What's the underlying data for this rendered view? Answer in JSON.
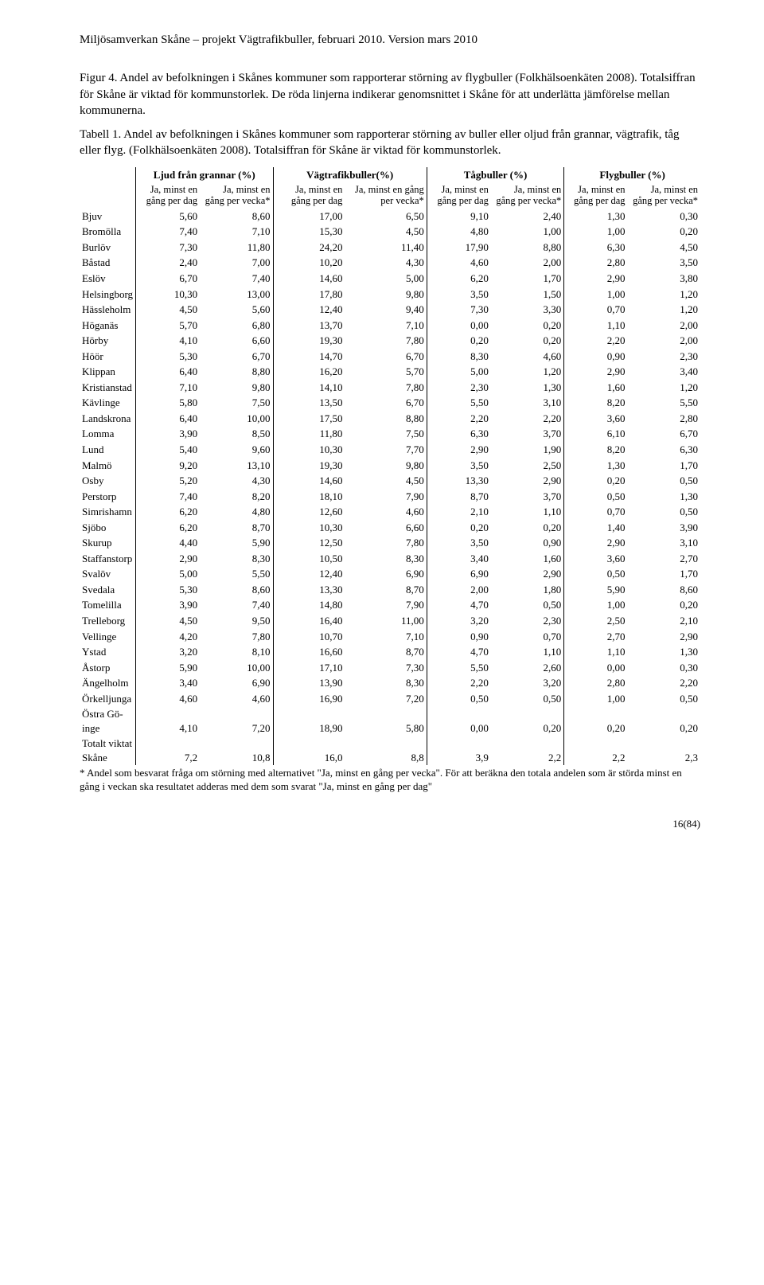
{
  "header": "Miljösamverkan Skåne – projekt Vägtrafikbuller, februari 2010. Version mars 2010",
  "caption1": "Figur 4. Andel av befolkningen i Skånes kommuner som rapporterar störning av flygbuller (Folkhälsoenkäten 2008). Totalsiffran för Skåne är viktad för kommunstorlek. De röda linjerna indikerar genomsnittet i Skåne för att underlätta jämförelse mellan kommunerna.",
  "caption2": "Tabell 1. Andel av befolkningen i Skånes kommuner som rapporterar störning av buller eller oljud från grannar, vägtrafik, tåg eller flyg. (Folkhälsoenkäten 2008). Totalsiffran för Skåne är viktad för kommunstorlek.",
  "table": {
    "groupHeaders": [
      "Ljud från grannar (%)",
      "Vägtrafikbuller(%)",
      "Tågbuller (%)",
      "Flygbuller (%)"
    ],
    "subHeaders": [
      "Ja, minst en gång per dag",
      "Ja, minst en gång per vecka*",
      "Ja, minst en gång per dag",
      "Ja, minst en gång per vecka*",
      "Ja, minst en gång per dag",
      "Ja, minst en gång per vecka*",
      "Ja, minst en gång per dag",
      "Ja, minst en gång per vecka*"
    ],
    "rows": [
      {
        "label": "Bjuv",
        "v": [
          "5,60",
          "8,60",
          "17,00",
          "6,50",
          "9,10",
          "2,40",
          "1,30",
          "0,30"
        ]
      },
      {
        "label": "Bromölla",
        "v": [
          "7,40",
          "7,10",
          "15,30",
          "4,50",
          "4,80",
          "1,00",
          "1,00",
          "0,20"
        ]
      },
      {
        "label": "Burlöv",
        "v": [
          "7,30",
          "11,80",
          "24,20",
          "11,40",
          "17,90",
          "8,80",
          "6,30",
          "4,50"
        ]
      },
      {
        "label": "Båstad",
        "v": [
          "2,40",
          "7,00",
          "10,20",
          "4,30",
          "4,60",
          "2,00",
          "2,80",
          "3,50"
        ]
      },
      {
        "label": "Eslöv",
        "v": [
          "6,70",
          "7,40",
          "14,60",
          "5,00",
          "6,20",
          "1,70",
          "2,90",
          "3,80"
        ]
      },
      {
        "label": "Helsingborg",
        "v": [
          "10,30",
          "13,00",
          "17,80",
          "9,80",
          "3,50",
          "1,50",
          "1,00",
          "1,20"
        ]
      },
      {
        "label": "Hässleholm",
        "v": [
          "4,50",
          "5,60",
          "12,40",
          "9,40",
          "7,30",
          "3,30",
          "0,70",
          "1,20"
        ]
      },
      {
        "label": "Höganäs",
        "v": [
          "5,70",
          "6,80",
          "13,70",
          "7,10",
          "0,00",
          "0,20",
          "1,10",
          "2,00"
        ]
      },
      {
        "label": "Hörby",
        "v": [
          "4,10",
          "6,60",
          "19,30",
          "7,80",
          "0,20",
          "0,20",
          "2,20",
          "2,00"
        ]
      },
      {
        "label": "Höör",
        "v": [
          "5,30",
          "6,70",
          "14,70",
          "6,70",
          "8,30",
          "4,60",
          "0,90",
          "2,30"
        ]
      },
      {
        "label": "Klippan",
        "v": [
          "6,40",
          "8,80",
          "16,20",
          "5,70",
          "5,00",
          "1,20",
          "2,90",
          "3,40"
        ]
      },
      {
        "label": "Kristianstad",
        "v": [
          "7,10",
          "9,80",
          "14,10",
          "7,80",
          "2,30",
          "1,30",
          "1,60",
          "1,20"
        ]
      },
      {
        "label": "Kävlinge",
        "v": [
          "5,80",
          "7,50",
          "13,50",
          "6,70",
          "5,50",
          "3,10",
          "8,20",
          "5,50"
        ]
      },
      {
        "label": "Landskrona",
        "v": [
          "6,40",
          "10,00",
          "17,50",
          "8,80",
          "2,20",
          "2,20",
          "3,60",
          "2,80"
        ]
      },
      {
        "label": "Lomma",
        "v": [
          "3,90",
          "8,50",
          "11,80",
          "7,50",
          "6,30",
          "3,70",
          "6,10",
          "6,70"
        ]
      },
      {
        "label": "Lund",
        "v": [
          "5,40",
          "9,60",
          "10,30",
          "7,70",
          "2,90",
          "1,90",
          "8,20",
          "6,30"
        ]
      },
      {
        "label": "Malmö",
        "v": [
          "9,20",
          "13,10",
          "19,30",
          "9,80",
          "3,50",
          "2,50",
          "1,30",
          "1,70"
        ]
      },
      {
        "label": "Osby",
        "v": [
          "5,20",
          "4,30",
          "14,60",
          "4,50",
          "13,30",
          "2,90",
          "0,20",
          "0,50"
        ]
      },
      {
        "label": "Perstorp",
        "v": [
          "7,40",
          "8,20",
          "18,10",
          "7,90",
          "8,70",
          "3,70",
          "0,50",
          "1,30"
        ]
      },
      {
        "label": "Simrishamn",
        "v": [
          "6,20",
          "4,80",
          "12,60",
          "4,60",
          "2,10",
          "1,10",
          "0,70",
          "0,50"
        ]
      },
      {
        "label": "Sjöbo",
        "v": [
          "6,20",
          "8,70",
          "10,30",
          "6,60",
          "0,20",
          "0,20",
          "1,40",
          "3,90"
        ]
      },
      {
        "label": "Skurup",
        "v": [
          "4,40",
          "5,90",
          "12,50",
          "7,80",
          "3,50",
          "0,90",
          "2,90",
          "3,10"
        ]
      },
      {
        "label": "Staffanstorp",
        "v": [
          "2,90",
          "8,30",
          "10,50",
          "8,30",
          "3,40",
          "1,60",
          "3,60",
          "2,70"
        ]
      },
      {
        "label": "Svalöv",
        "v": [
          "5,00",
          "5,50",
          "12,40",
          "6,90",
          "6,90",
          "2,90",
          "0,50",
          "1,70"
        ]
      },
      {
        "label": "Svedala",
        "v": [
          "5,30",
          "8,60",
          "13,30",
          "8,70",
          "2,00",
          "1,80",
          "5,90",
          "8,60"
        ]
      },
      {
        "label": "Tomelilla",
        "v": [
          "3,90",
          "7,40",
          "14,80",
          "7,90",
          "4,70",
          "0,50",
          "1,00",
          "0,20"
        ]
      },
      {
        "label": "Trelleborg",
        "v": [
          "4,50",
          "9,50",
          "16,40",
          "11,00",
          "3,20",
          "2,30",
          "2,50",
          "2,10"
        ]
      },
      {
        "label": "Vellinge",
        "v": [
          "4,20",
          "7,80",
          "10,70",
          "7,10",
          "0,90",
          "0,70",
          "2,70",
          "2,90"
        ]
      },
      {
        "label": "Ystad",
        "v": [
          "3,20",
          "8,10",
          "16,60",
          "8,70",
          "4,70",
          "1,10",
          "1,10",
          "1,30"
        ]
      },
      {
        "label": "Åstorp",
        "v": [
          "5,90",
          "10,00",
          "17,10",
          "7,30",
          "5,50",
          "2,60",
          "0,00",
          "0,30"
        ]
      },
      {
        "label": "Ängelholm",
        "v": [
          "3,40",
          "6,90",
          "13,90",
          "8,30",
          "2,20",
          "3,20",
          "2,80",
          "2,20"
        ]
      },
      {
        "label": "Örkelljunga",
        "v": [
          "4,60",
          "4,60",
          "16,90",
          "7,20",
          "0,50",
          "0,50",
          "1,00",
          "0,50"
        ]
      },
      {
        "label": "Östra Gö-\ninge",
        "v": [
          "4,10",
          "7,20",
          "18,90",
          "5,80",
          "0,00",
          "0,20",
          "0,20",
          "0,20"
        ]
      },
      {
        "label": "Totalt viktat\nSkåne",
        "v": [
          "7,2",
          "10,8",
          "16,0",
          "8,8",
          "3,9",
          "2,2",
          "2,2",
          "2,3"
        ]
      }
    ]
  },
  "footnote": "* Andel som besvarat fråga om störning med alternativet \"Ja, minst en gång per vecka\". För att beräkna den totala andelen som är störda minst en gång i veckan ska resultatet adderas med dem som svarat \"Ja, minst en gång per dag\"",
  "pagenum": "16(84)"
}
